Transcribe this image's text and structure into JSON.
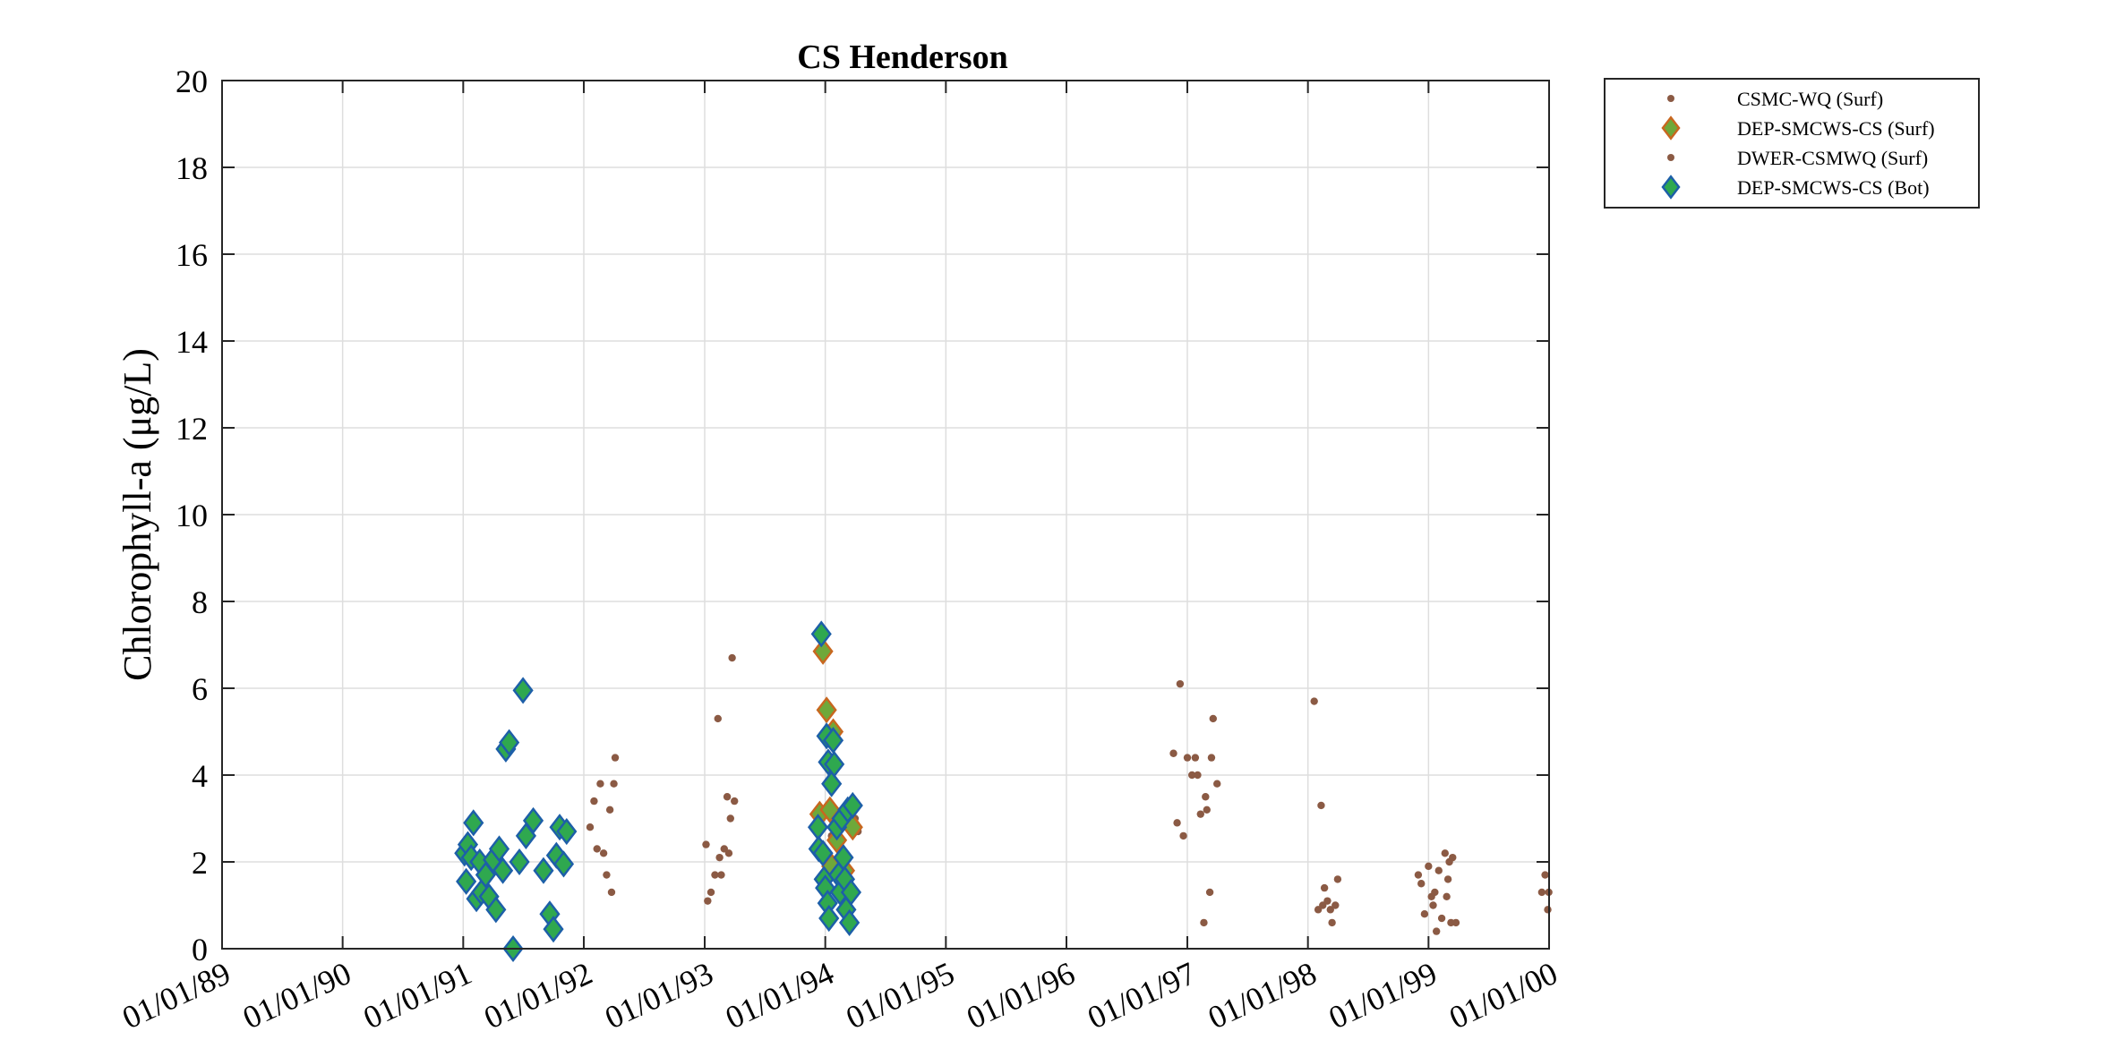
{
  "chart_data": {
    "type": "scatter",
    "title": "CS Henderson",
    "xlabel": "",
    "ylabel": "Chlorophyll-a (μg/L)",
    "x_axis_type": "date",
    "xlim": [
      "1989-01-01",
      "2000-01-01"
    ],
    "ylim": [
      0,
      20
    ],
    "x_ticks": [
      "1989-01-01",
      "1990-01-01",
      "1991-01-01",
      "1992-01-01",
      "1993-01-01",
      "1994-01-01",
      "1995-01-01",
      "1996-01-01",
      "1997-01-01",
      "1998-01-01",
      "1999-01-01",
      "2000-01-01"
    ],
    "x_tick_labels": [
      "01/01/89",
      "01/01/90",
      "01/01/91",
      "01/01/92",
      "01/01/93",
      "01/01/94",
      "01/01/95",
      "01/01/96",
      "01/01/97",
      "01/01/98",
      "01/01/99",
      "01/01/00"
    ],
    "y_ticks": [
      0,
      2,
      4,
      6,
      8,
      10,
      12,
      14,
      16,
      18,
      20
    ],
    "y_tick_labels": [
      "0",
      "2",
      "4",
      "6",
      "8",
      "10",
      "12",
      "14",
      "16",
      "18",
      "20"
    ],
    "grid": true,
    "legend_position": "outside-top-right",
    "series": [
      {
        "name": "CSMC-WQ (Surf)",
        "marker": "dot",
        "color": "#8b5a44",
        "points": [
          {
            "x": "1992-01-20",
            "y": 2.8
          },
          {
            "x": "1992-02-01",
            "y": 3.4
          },
          {
            "x": "1992-02-10",
            "y": 2.3
          },
          {
            "x": "1992-02-20",
            "y": 3.8
          },
          {
            "x": "1992-03-01",
            "y": 2.2
          },
          {
            "x": "1992-03-10",
            "y": 1.7
          },
          {
            "x": "1992-03-20",
            "y": 3.2
          },
          {
            "x": "1992-03-25",
            "y": 1.3
          },
          {
            "x": "1992-04-01",
            "y": 3.8
          },
          {
            "x": "1992-04-05",
            "y": 4.4
          },
          {
            "x": "1993-01-05",
            "y": 2.4
          },
          {
            "x": "1993-01-10",
            "y": 1.1
          },
          {
            "x": "1993-01-20",
            "y": 1.3
          },
          {
            "x": "1993-02-01",
            "y": 1.7
          },
          {
            "x": "1993-02-10",
            "y": 5.3
          },
          {
            "x": "1993-02-15",
            "y": 2.1
          },
          {
            "x": "1993-02-20",
            "y": 1.7
          },
          {
            "x": "1993-03-01",
            "y": 2.3
          },
          {
            "x": "1993-03-10",
            "y": 3.5
          },
          {
            "x": "1993-03-15",
            "y": 2.2
          },
          {
            "x": "1993-03-20",
            "y": 3.0
          },
          {
            "x": "1993-03-25",
            "y": 6.7
          },
          {
            "x": "1993-04-01",
            "y": 3.4
          },
          {
            "x": "1994-01-01",
            "y": 3.1
          },
          {
            "x": "1994-01-20",
            "y": 2.6
          },
          {
            "x": "1994-02-01",
            "y": 3.2
          },
          {
            "x": "1994-03-01",
            "y": 2.0
          },
          {
            "x": "1994-03-10",
            "y": 1.5
          },
          {
            "x": "1994-04-01",
            "y": 3.0
          },
          {
            "x": "1994-04-10",
            "y": 2.7
          }
        ]
      },
      {
        "name": "DEP-SMCWS-CS (Surf)",
        "marker": "diamond",
        "color": "#6fa83a",
        "edge": "#c8671f",
        "points": [
          {
            "x": "1993-12-15",
            "y": 3.1
          },
          {
            "x": "1993-12-25",
            "y": 6.85
          },
          {
            "x": "1994-01-05",
            "y": 5.5
          },
          {
            "x": "1994-01-15",
            "y": 3.2
          },
          {
            "x": "1994-01-20",
            "y": 1.9
          },
          {
            "x": "1994-01-25",
            "y": 5.0
          },
          {
            "x": "1994-02-05",
            "y": 2.5
          },
          {
            "x": "1994-03-01",
            "y": 1.8
          },
          {
            "x": "1994-03-15",
            "y": 2.9
          },
          {
            "x": "1994-03-25",
            "y": 2.8
          }
        ]
      },
      {
        "name": "DWER-CSMWQ (Surf)",
        "marker": "dot",
        "color": "#8b5a44",
        "points": [
          {
            "x": "1996-11-20",
            "y": 4.5
          },
          {
            "x": "1996-12-01",
            "y": 2.9
          },
          {
            "x": "1996-12-10",
            "y": 6.1
          },
          {
            "x": "1996-12-20",
            "y": 2.6
          },
          {
            "x": "1997-01-01",
            "y": 4.4
          },
          {
            "x": "1997-01-15",
            "y": 4.0
          },
          {
            "x": "1997-01-25",
            "y": 4.4
          },
          {
            "x": "1997-02-01",
            "y": 4.0
          },
          {
            "x": "1997-02-10",
            "y": 3.1
          },
          {
            "x": "1997-02-20",
            "y": 0.6
          },
          {
            "x": "1997-02-25",
            "y": 3.5
          },
          {
            "x": "1997-03-01",
            "y": 3.2
          },
          {
            "x": "1997-03-10",
            "y": 1.3
          },
          {
            "x": "1997-03-15",
            "y": 4.4
          },
          {
            "x": "1997-03-20",
            "y": 5.3
          },
          {
            "x": "1997-04-01",
            "y": 3.8
          },
          {
            "x": "1998-01-20",
            "y": 5.7
          },
          {
            "x": "1998-02-01",
            "y": 0.9
          },
          {
            "x": "1998-02-10",
            "y": 3.3
          },
          {
            "x": "1998-02-15",
            "y": 1.0
          },
          {
            "x": "1998-02-20",
            "y": 1.4
          },
          {
            "x": "1998-03-01",
            "y": 1.1
          },
          {
            "x": "1998-03-10",
            "y": 0.9
          },
          {
            "x": "1998-03-15",
            "y": 0.6
          },
          {
            "x": "1998-03-25",
            "y": 1.0
          },
          {
            "x": "1998-04-01",
            "y": 1.6
          },
          {
            "x": "1998-12-01",
            "y": 1.7
          },
          {
            "x": "1998-12-10",
            "y": 1.5
          },
          {
            "x": "1998-12-20",
            "y": 0.8
          },
          {
            "x": "1999-01-01",
            "y": 1.9
          },
          {
            "x": "1999-01-10",
            "y": 1.2
          },
          {
            "x": "1999-01-15",
            "y": 1.0
          },
          {
            "x": "1999-01-20",
            "y": 1.3
          },
          {
            "x": "1999-01-25",
            "y": 0.4
          },
          {
            "x": "1999-02-01",
            "y": 1.8
          },
          {
            "x": "1999-02-10",
            "y": 0.7
          },
          {
            "x": "1999-02-20",
            "y": 2.2
          },
          {
            "x": "1999-02-25",
            "y": 1.2
          },
          {
            "x": "1999-03-01",
            "y": 1.6
          },
          {
            "x": "1999-03-05",
            "y": 2.0
          },
          {
            "x": "1999-03-10",
            "y": 0.6
          },
          {
            "x": "1999-03-15",
            "y": 2.1
          },
          {
            "x": "1999-03-25",
            "y": 0.6
          },
          {
            "x": "1999-12-10",
            "y": 1.3
          },
          {
            "x": "1999-12-20",
            "y": 1.7
          },
          {
            "x": "1999-12-28",
            "y": 0.9
          },
          {
            "x": "1999-12-31",
            "y": 1.3
          }
        ]
      },
      {
        "name": "DEP-SMCWS-CS (Bot)",
        "marker": "diamond",
        "color": "#2fa84f",
        "edge": "#1d5fa8",
        "points": [
          {
            "x": "1991-01-05",
            "y": 2.2
          },
          {
            "x": "1991-01-10",
            "y": 1.55
          },
          {
            "x": "1991-01-15",
            "y": 2.4
          },
          {
            "x": "1991-01-25",
            "y": 2.1
          },
          {
            "x": "1991-02-01",
            "y": 2.9
          },
          {
            "x": "1991-02-10",
            "y": 1.15
          },
          {
            "x": "1991-02-20",
            "y": 2.0
          },
          {
            "x": "1991-02-25",
            "y": 1.3
          },
          {
            "x": "1991-03-10",
            "y": 1.7
          },
          {
            "x": "1991-03-20",
            "y": 1.2
          },
          {
            "x": "1991-04-01",
            "y": 2.05
          },
          {
            "x": "1991-04-10",
            "y": 0.9
          },
          {
            "x": "1991-04-20",
            "y": 2.3
          },
          {
            "x": "1991-05-01",
            "y": 1.8
          },
          {
            "x": "1991-05-10",
            "y": 4.6
          },
          {
            "x": "1991-05-20",
            "y": 4.75
          },
          {
            "x": "1991-06-01",
            "y": 0.0
          },
          {
            "x": "1991-06-20",
            "y": 2.0
          },
          {
            "x": "1991-07-01",
            "y": 5.95
          },
          {
            "x": "1991-07-10",
            "y": 2.6
          },
          {
            "x": "1991-08-01",
            "y": 2.95
          },
          {
            "x": "1991-09-01",
            "y": 1.8
          },
          {
            "x": "1991-09-20",
            "y": 0.8
          },
          {
            "x": "1991-10-01",
            "y": 0.45
          },
          {
            "x": "1991-10-10",
            "y": 2.15
          },
          {
            "x": "1991-10-20",
            "y": 2.8
          },
          {
            "x": "1991-11-01",
            "y": 1.95
          },
          {
            "x": "1991-11-10",
            "y": 2.7
          },
          {
            "x": "1993-12-10",
            "y": 2.8
          },
          {
            "x": "1993-12-12",
            "y": 2.3
          },
          {
            "x": "1993-12-20",
            "y": 7.25
          },
          {
            "x": "1993-12-25",
            "y": 2.2
          },
          {
            "x": "1993-12-28",
            "y": 1.6
          },
          {
            "x": "1994-01-01",
            "y": 1.4
          },
          {
            "x": "1994-01-05",
            "y": 4.9
          },
          {
            "x": "1994-01-08",
            "y": 1.05
          },
          {
            "x": "1994-01-10",
            "y": 4.3
          },
          {
            "x": "1994-01-12",
            "y": 0.7
          },
          {
            "x": "1994-01-20",
            "y": 3.8
          },
          {
            "x": "1994-01-25",
            "y": 4.8
          },
          {
            "x": "1994-01-28",
            "y": 4.25
          },
          {
            "x": "1994-02-05",
            "y": 2.8
          },
          {
            "x": "1994-02-10",
            "y": 1.7
          },
          {
            "x": "1994-02-15",
            "y": 1.3
          },
          {
            "x": "1994-02-20",
            "y": 3.0
          },
          {
            "x": "1994-02-25",
            "y": 2.1
          },
          {
            "x": "1994-03-01",
            "y": 1.6
          },
          {
            "x": "1994-03-05",
            "y": 0.9
          },
          {
            "x": "1994-03-10",
            "y": 3.2
          },
          {
            "x": "1994-03-15",
            "y": 0.6
          },
          {
            "x": "1994-03-20",
            "y": 1.3
          },
          {
            "x": "1994-03-25",
            "y": 3.3
          }
        ]
      }
    ]
  }
}
